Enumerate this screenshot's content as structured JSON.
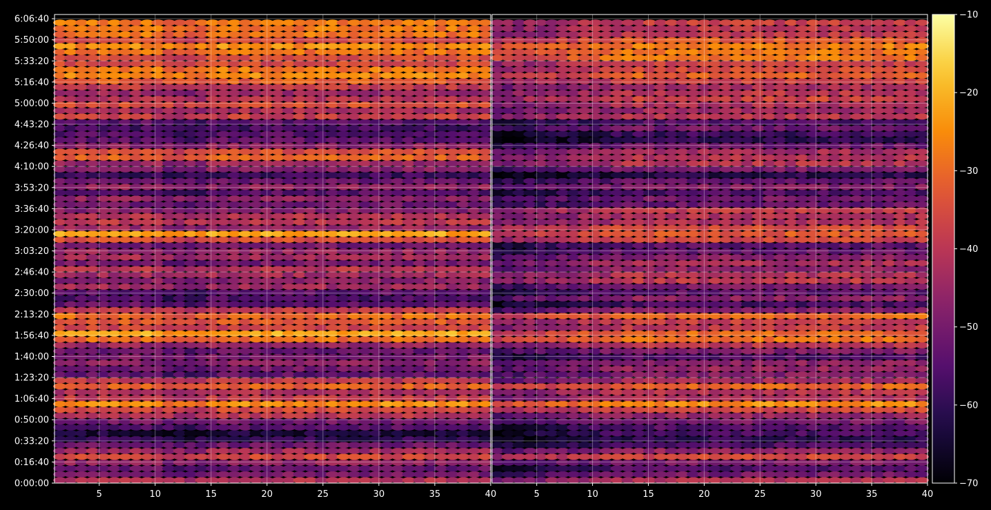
{
  "chart_data": {
    "type": "heatmap",
    "background": "#000000",
    "colormap": "inferno",
    "grid": true,
    "grid_color": "#ffffff",
    "panels": [
      {
        "name": "left",
        "x_ticks": [
          5,
          10,
          15,
          20,
          25,
          30,
          35,
          40
        ],
        "x_range": [
          1,
          40
        ]
      },
      {
        "name": "right",
        "x_ticks": [
          5,
          10,
          15,
          20,
          25,
          30,
          35,
          40
        ],
        "x_range": [
          1,
          40
        ]
      }
    ],
    "y_axis": {
      "ticks": [
        "0:00:00",
        "0:16:40",
        "0:33:20",
        "0:50:00",
        "1:06:40",
        "1:23:20",
        "1:40:00",
        "1:56:40",
        "2:13:20",
        "2:30:00",
        "2:46:40",
        "3:03:20",
        "3:20:00",
        "3:36:40",
        "3:53:20",
        "4:10:00",
        "4:26:40",
        "4:43:20",
        "5:00:00",
        "5:16:40",
        "5:33:20",
        "5:50:00",
        "6:06:40"
      ],
      "range_seconds": [
        0,
        22200
      ]
    },
    "colorbar": {
      "ticks": [
        "−10",
        "−20",
        "−30",
        "−40",
        "−50",
        "−60",
        "−70"
      ],
      "range": [
        -70,
        -10
      ]
    },
    "row_levels": [
      {
        "t": 0,
        "v": -35
      },
      {
        "t": 320,
        "v": -42
      },
      {
        "t": 640,
        "v": -55
      },
      {
        "t": 1000,
        "v": -44
      },
      {
        "t": 1350,
        "v": -38
      },
      {
        "t": 1700,
        "v": -48
      },
      {
        "t": 2300,
        "v": -60
      },
      {
        "t": 2600,
        "v": -52
      },
      {
        "t": 3400,
        "v": -38
      },
      {
        "t": 3800,
        "v": -28
      },
      {
        "t": 4200,
        "v": -50
      },
      {
        "t": 4600,
        "v": -36
      },
      {
        "t": 5000,
        "v": -50
      },
      {
        "t": 5800,
        "v": -52
      },
      {
        "t": 6400,
        "v": -48
      },
      {
        "t": 7000,
        "v": -22
      },
      {
        "t": 7450,
        "v": -45
      },
      {
        "t": 7900,
        "v": -30
      },
      {
        "t": 8500,
        "v": -55
      },
      {
        "t": 8900,
        "v": -50
      },
      {
        "t": 9500,
        "v": -45
      },
      {
        "t": 10000,
        "v": -38
      },
      {
        "t": 10600,
        "v": -48
      },
      {
        "t": 11300,
        "v": -52
      },
      {
        "t": 11750,
        "v": -24
      },
      {
        "t": 12200,
        "v": -46
      },
      {
        "t": 12800,
        "v": -42
      },
      {
        "t": 13500,
        "v": -52
      },
      {
        "t": 14100,
        "v": -48
      },
      {
        "t": 14600,
        "v": -60
      },
      {
        "t": 15500,
        "v": -34
      },
      {
        "t": 16200,
        "v": -56
      },
      {
        "t": 16900,
        "v": -54
      },
      {
        "t": 17500,
        "v": -40
      },
      {
        "t": 18000,
        "v": -36
      },
      {
        "t": 18600,
        "v": -44
      },
      {
        "t": 19300,
        "v": -28
      },
      {
        "t": 19900,
        "v": -38
      },
      {
        "t": 20500,
        "v": -26
      },
      {
        "t": 21300,
        "v": -34
      },
      {
        "t": 21800,
        "v": -33
      },
      {
        "t": 22200,
        "v": -45
      }
    ]
  }
}
